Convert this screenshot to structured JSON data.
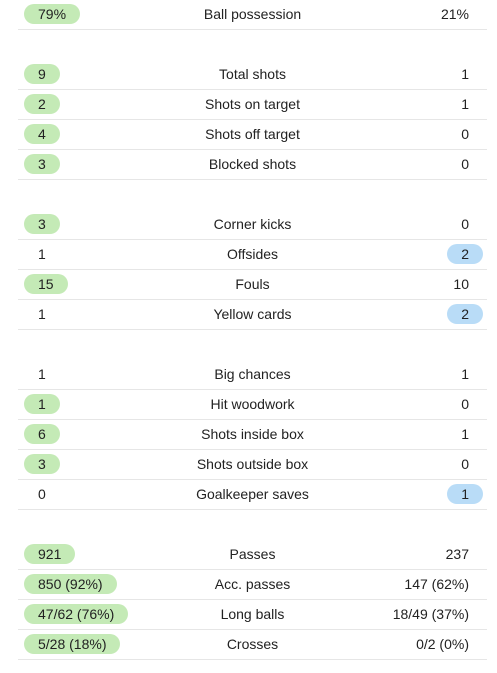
{
  "colors": {
    "home_highlight": "#c4eab6",
    "away_highlight": "#b9dcf7"
  },
  "groups": [
    {
      "rows": [
        {
          "label": "Ball possession",
          "home": "79%",
          "away": "21%",
          "winner": "home"
        }
      ]
    },
    {
      "rows": [
        {
          "label": "Total shots",
          "home": "9",
          "away": "1",
          "winner": "home"
        },
        {
          "label": "Shots on target",
          "home": "2",
          "away": "1",
          "winner": "home"
        },
        {
          "label": "Shots off target",
          "home": "4",
          "away": "0",
          "winner": "home"
        },
        {
          "label": "Blocked shots",
          "home": "3",
          "away": "0",
          "winner": "home"
        }
      ]
    },
    {
      "rows": [
        {
          "label": "Corner kicks",
          "home": "3",
          "away": "0",
          "winner": "home"
        },
        {
          "label": "Offsides",
          "home": "1",
          "away": "2",
          "winner": "away"
        },
        {
          "label": "Fouls",
          "home": "15",
          "away": "10",
          "winner": "home"
        },
        {
          "label": "Yellow cards",
          "home": "1",
          "away": "2",
          "winner": "away"
        }
      ]
    },
    {
      "rows": [
        {
          "label": "Big chances",
          "home": "1",
          "away": "1",
          "winner": "none"
        },
        {
          "label": "Hit woodwork",
          "home": "1",
          "away": "0",
          "winner": "home"
        },
        {
          "label": "Shots inside box",
          "home": "6",
          "away": "1",
          "winner": "home"
        },
        {
          "label": "Shots outside box",
          "home": "3",
          "away": "0",
          "winner": "home"
        },
        {
          "label": "Goalkeeper saves",
          "home": "0",
          "away": "1",
          "winner": "away"
        }
      ]
    },
    {
      "rows": [
        {
          "label": "Passes",
          "home": "921",
          "away": "237",
          "winner": "home"
        },
        {
          "label": "Acc. passes",
          "home": "850 (92%)",
          "away": "147 (62%)",
          "winner": "home"
        },
        {
          "label": "Long balls",
          "home": "47/62 (76%)",
          "away": "18/49 (37%)",
          "winner": "home"
        },
        {
          "label": "Crosses",
          "home": "5/28 (18%)",
          "away": "0/2 (0%)",
          "winner": "home"
        }
      ]
    }
  ]
}
